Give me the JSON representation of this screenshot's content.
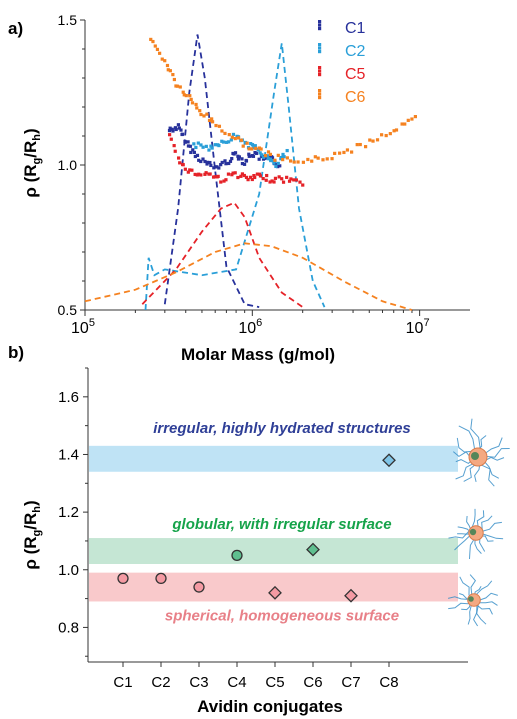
{
  "chart_data": [
    {
      "panel_label": "a)",
      "type": "scatter",
      "xlabel": "Molar Mass (g/mol)",
      "ylabel_main": "ρ (R",
      "ylabel_sub1": "g",
      "ylabel_mid": "/R",
      "ylabel_sub2": "h",
      "ylabel_end": ")",
      "x_scale": "log",
      "xlim": [
        100000,
        20000000
      ],
      "ylim": [
        0.5,
        1.5
      ],
      "x_ticks": [
        {
          "base": "10",
          "exp": "5",
          "value": 100000
        },
        {
          "base": "10",
          "exp": "6",
          "value": 1000000
        },
        {
          "base": "10",
          "exp": "7",
          "value": 10000000
        }
      ],
      "y_ticks": [
        {
          "label": "0.5",
          "value": 0.5
        },
        {
          "label": "1.0",
          "value": 1.0
        },
        {
          "label": "1.5",
          "value": 1.5
        }
      ],
      "legend": [
        "C1",
        "C2",
        "C5",
        "C6"
      ],
      "series": [
        {
          "name": "C1",
          "color": "#27319b",
          "points": [
            [
              320000,
              1.12
            ],
            [
              360000,
              1.13
            ],
            [
              400000,
              1.08
            ],
            [
              450000,
              1.04
            ],
            [
              520000,
              1.01
            ],
            [
              600000,
              0.99
            ],
            [
              700000,
              1.01
            ],
            [
              800000,
              1.04
            ],
            [
              900000,
              1.01
            ],
            [
              1000000,
              1.04
            ],
            [
              1150000,
              1.02
            ],
            [
              1300000,
              1.02
            ],
            [
              1450000,
              1.0
            ]
          ],
          "distribution": [
            [
              300000,
              0.52
            ],
            [
              360000,
              0.85
            ],
            [
              420000,
              1.25
            ],
            [
              470000,
              1.45
            ],
            [
              520000,
              1.3
            ],
            [
              600000,
              0.98
            ],
            [
              700000,
              0.65
            ],
            [
              900000,
              0.52
            ],
            [
              1100000,
              0.51
            ]
          ]
        },
        {
          "name": "C2",
          "color": "#2a9fd8",
          "points": [
            [
              450000,
              1.07
            ],
            [
              550000,
              1.06
            ],
            [
              650000,
              1.08
            ],
            [
              800000,
              1.1
            ],
            [
              950000,
              1.07
            ],
            [
              1100000,
              1.05
            ],
            [
              1250000,
              1.02
            ],
            [
              1400000,
              1.0
            ],
            [
              1600000,
              1.04
            ]
          ],
          "distribution": [
            [
              230000,
              0.5
            ],
            [
              240000,
              0.68
            ],
            [
              260000,
              0.62
            ],
            [
              300000,
              0.64
            ],
            [
              500000,
              0.62
            ],
            [
              800000,
              0.64
            ],
            [
              1100000,
              0.9
            ],
            [
              1350000,
              1.25
            ],
            [
              1500000,
              1.42
            ],
            [
              1650000,
              1.2
            ],
            [
              1900000,
              0.85
            ],
            [
              2300000,
              0.6
            ],
            [
              2700000,
              0.51
            ]
          ]
        },
        {
          "name": "C5",
          "color": "#e52228",
          "points": [
            [
              320000,
              1.1
            ],
            [
              380000,
              1.0
            ],
            [
              450000,
              0.97
            ],
            [
              550000,
              0.97
            ],
            [
              650000,
              0.95
            ],
            [
              800000,
              0.97
            ],
            [
              950000,
              0.95
            ],
            [
              1100000,
              0.96
            ],
            [
              1300000,
              0.95
            ],
            [
              1600000,
              0.95
            ],
            [
              2000000,
              0.94
            ]
          ],
          "distribution": [
            [
              220000,
              0.52
            ],
            [
              350000,
              0.64
            ],
            [
              500000,
              0.77
            ],
            [
              650000,
              0.85
            ],
            [
              780000,
              0.87
            ],
            [
              900000,
              0.82
            ],
            [
              1100000,
              0.68
            ],
            [
              1500000,
              0.56
            ],
            [
              2000000,
              0.51
            ]
          ]
        },
        {
          "name": "C6",
          "color": "#f58220",
          "points": [
            [
              250000,
              1.43
            ],
            [
              300000,
              1.36
            ],
            [
              350000,
              1.28
            ],
            [
              420000,
              1.23
            ],
            [
              500000,
              1.18
            ],
            [
              600000,
              1.14
            ],
            [
              800000,
              1.09
            ],
            [
              1000000,
              1.06
            ],
            [
              1300000,
              1.03
            ],
            [
              1800000,
              1.01
            ],
            [
              2500000,
              1.02
            ],
            [
              3500000,
              1.04
            ],
            [
              5000000,
              1.08
            ],
            [
              7000000,
              1.12
            ],
            [
              9500000,
              1.16
            ]
          ],
          "distribution": [
            [
              100000,
              0.53
            ],
            [
              200000,
              0.57
            ],
            [
              350000,
              0.63
            ],
            [
              600000,
              0.7
            ],
            [
              900000,
              0.73
            ],
            [
              1300000,
              0.72
            ],
            [
              2000000,
              0.68
            ],
            [
              3500000,
              0.6
            ],
            [
              6000000,
              0.53
            ],
            [
              9000000,
              0.5
            ]
          ]
        }
      ]
    },
    {
      "panel_label": "b)",
      "type": "scatter",
      "xlabel": "Avidin conjugates",
      "ylabel_main": "ρ (R",
      "ylabel_sub1": "g",
      "ylabel_mid": "/R",
      "ylabel_sub2": "h",
      "ylabel_end": ")",
      "ylim": [
        0.68,
        1.7
      ],
      "y_ticks": [
        {
          "label": "0.8",
          "value": 0.8
        },
        {
          "label": "1.0",
          "value": 1.0
        },
        {
          "label": "1.2",
          "value": 1.2
        },
        {
          "label": "1.4",
          "value": 1.4
        },
        {
          "label": "1.6",
          "value": 1.6
        }
      ],
      "categories": [
        "C1",
        "C2",
        "C3",
        "C4",
        "C5",
        "C6",
        "C7",
        "C8"
      ],
      "bands": [
        {
          "label": "irregular, highly hydrated structures",
          "range": [
            1.34,
            1.43
          ],
          "fill": "#bfe3f5",
          "text_color": "#2f3f97"
        },
        {
          "label": "globular, with irregular surface",
          "range": [
            1.02,
            1.11
          ],
          "fill": "#c5e6d4",
          "text_color": "#16a34a"
        },
        {
          "label": "spherical, homogeneous surface",
          "range": [
            0.89,
            0.99
          ],
          "fill": "#f9c9cb",
          "text_color": "#e88088"
        }
      ],
      "points": [
        {
          "category": "C1",
          "value": 0.97,
          "marker": "circle",
          "fill": "#f49aa3"
        },
        {
          "category": "C2",
          "value": 0.97,
          "marker": "circle",
          "fill": "#f49aa3"
        },
        {
          "category": "C3",
          "value": 0.94,
          "marker": "circle",
          "fill": "#f49aa3"
        },
        {
          "category": "C4",
          "value": 1.05,
          "marker": "circle",
          "fill": "#5fbf8f"
        },
        {
          "category": "C5",
          "value": 0.92,
          "marker": "diamond",
          "fill": "#f49aa3"
        },
        {
          "category": "C6",
          "value": 1.07,
          "marker": "diamond",
          "fill": "#5fbf8f"
        },
        {
          "category": "C7",
          "value": 0.91,
          "marker": "diamond",
          "fill": "#f49aa3"
        },
        {
          "category": "C8",
          "value": 1.38,
          "marker": "diamond",
          "fill": "#7fc4e6"
        }
      ]
    }
  ]
}
